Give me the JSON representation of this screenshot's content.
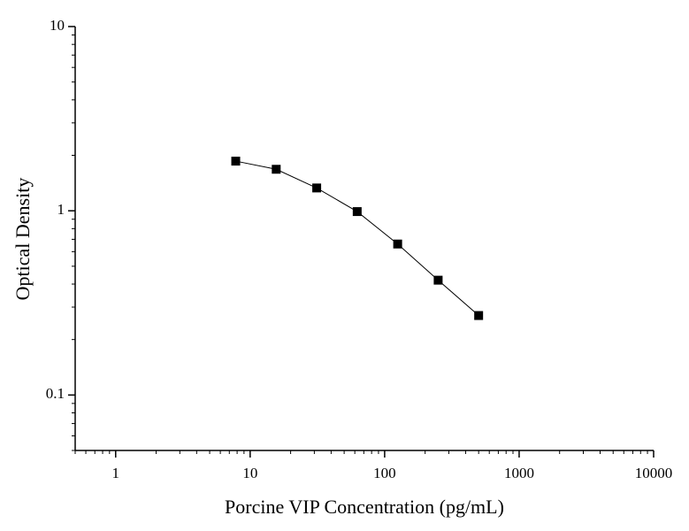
{
  "chart_data": {
    "type": "line",
    "x_label": "Porcine VIP Concentration (pg/mL)",
    "y_label": "Optical Density",
    "x": [
      7.8125,
      15.625,
      31.25,
      62.5,
      125,
      250,
      500
    ],
    "series": [
      {
        "color": "#000000",
        "values": [
          1.86,
          1.68,
          1.33,
          0.99,
          0.66,
          0.42,
          0.27
        ]
      }
    ],
    "xlim": [
      0.5,
      10000
    ],
    "xticks": [
      1,
      10,
      100,
      1000,
      10000
    ],
    "xscale": "log",
    "ylim": [
      0.05,
      10
    ],
    "yticks": [
      0.1,
      1,
      10
    ],
    "yscale": "log",
    "marker": "square"
  }
}
